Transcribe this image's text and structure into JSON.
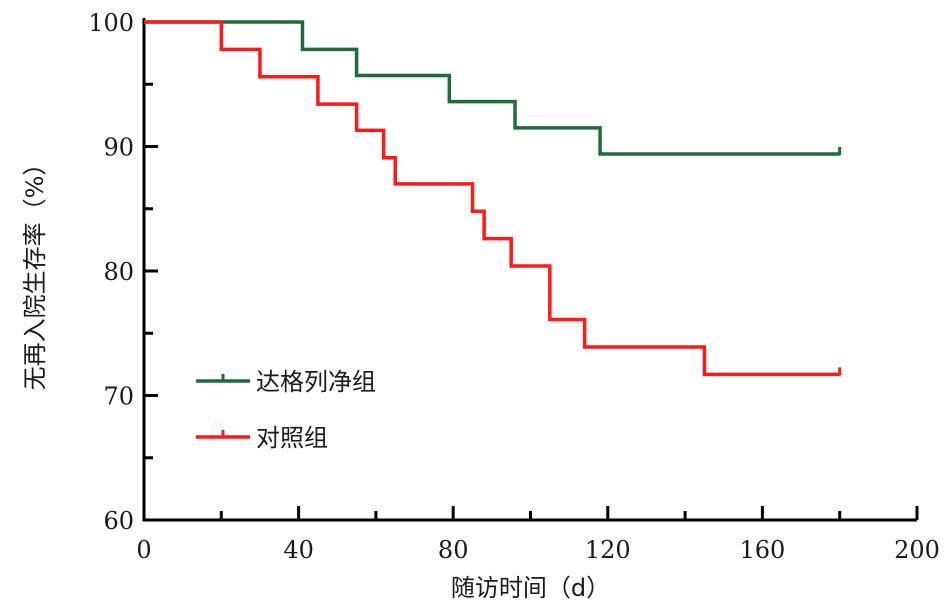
{
  "chart_data": {
    "type": "line",
    "step": true,
    "xlabel": "随访时间（d）",
    "ylabel": "无再入院生存率（%）",
    "xlim": [
      0,
      200
    ],
    "ylim": [
      60,
      100
    ],
    "xticks": [
      "0",
      "40",
      "80",
      "120",
      "160",
      "200"
    ],
    "yticks": [
      "60",
      "70",
      "80",
      "90",
      "100"
    ],
    "x_minor_step": 20,
    "y_minor_step": 5,
    "legend_position": "lower-left",
    "grid": false,
    "series": [
      {
        "name": "达格列净组",
        "color": "#1f6b3a",
        "x": [
          0,
          41,
          55,
          79,
          96,
          118,
          180
        ],
        "y": [
          100,
          97.8,
          95.7,
          93.6,
          91.5,
          89.4,
          89.4
        ],
        "censored": [
          {
            "x": 180,
            "y": 89.4
          }
        ]
      },
      {
        "name": "对照组",
        "color": "#ff1a1a",
        "x": [
          0,
          20,
          30,
          45,
          55,
          62,
          65,
          85,
          88,
          95,
          105,
          114,
          145,
          180
        ],
        "y": [
          100,
          97.8,
          95.6,
          93.4,
          91.3,
          89.1,
          87.0,
          84.8,
          82.6,
          80.4,
          76.1,
          73.9,
          71.7,
          71.7
        ],
        "censored": [
          {
            "x": 180,
            "y": 71.7
          }
        ]
      }
    ]
  }
}
